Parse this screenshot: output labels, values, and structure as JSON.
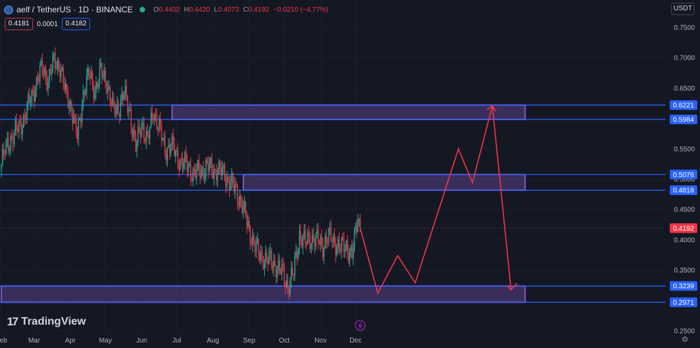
{
  "header": {
    "symbol": "aelf / TetherUS · 1D · BINANCE",
    "ohlc": {
      "o_label": "O",
      "o": "0.4402",
      "h_label": "H",
      "h": "0.4420",
      "l_label": "L",
      "l": "0.4073",
      "c_label": "C",
      "c": "0.4192"
    },
    "change": "−0.0210 (−4.77%)",
    "sell_price": "0.4181",
    "spread": "0.0001",
    "buy_price": "0.4182",
    "currency": "USDT"
  },
  "branding": {
    "name": "TradingView",
    "mark": "17"
  },
  "colors": {
    "background": "#141823",
    "up": "#22ab94",
    "down": "#f23645",
    "level_line": "#2962ff",
    "zone_fill": "rgba(126,87,194,0.35)",
    "projection": "#f23645"
  },
  "chart_data": {
    "type": "candlestick",
    "title": "",
    "xlabel": "",
    "ylabel": "",
    "ylim": [
      0.25,
      0.77
    ],
    "x_ticks": [
      "Feb",
      "Mar",
      "Apr",
      "May",
      "Jun",
      "Jul",
      "Aug",
      "Sep",
      "Oct",
      "Nov",
      "Dec"
    ],
    "y_ticks": [
      "0.7500",
      "0.7000",
      "0.6500",
      "0.6000",
      "0.5500",
      "0.5000",
      "0.4500",
      "0.4000",
      "0.3500",
      "0.3000",
      "0.2500"
    ],
    "last_price": "0.4192",
    "price_series_close": [
      [
        0,
        0.525
      ],
      [
        5,
        0.558
      ],
      [
        10,
        0.572
      ],
      [
        15,
        0.585
      ],
      [
        20,
        0.603
      ],
      [
        25,
        0.632
      ],
      [
        30,
        0.66
      ],
      [
        35,
        0.683
      ],
      [
        40,
        0.664
      ],
      [
        45,
        0.693
      ],
      [
        50,
        0.688
      ],
      [
        55,
        0.64
      ],
      [
        60,
        0.618
      ],
      [
        65,
        0.566
      ],
      [
        70,
        0.642
      ],
      [
        75,
        0.672
      ],
      [
        80,
        0.648
      ],
      [
        85,
        0.676
      ],
      [
        90,
        0.663
      ],
      [
        95,
        0.615
      ],
      [
        100,
        0.618
      ],
      [
        105,
        0.64
      ],
      [
        110,
        0.61
      ],
      [
        115,
        0.55
      ],
      [
        120,
        0.595
      ],
      [
        125,
        0.56
      ],
      [
        130,
        0.615
      ],
      [
        135,
        0.583
      ],
      [
        140,
        0.549
      ],
      [
        145,
        0.556
      ],
      [
        150,
        0.538
      ],
      [
        155,
        0.526
      ],
      [
        160,
        0.522
      ],
      [
        165,
        0.508
      ],
      [
        170,
        0.514
      ],
      [
        175,
        0.52
      ],
      [
        180,
        0.516
      ],
      [
        185,
        0.514
      ],
      [
        190,
        0.508
      ],
      [
        195,
        0.498
      ],
      [
        200,
        0.482
      ],
      [
        205,
        0.465
      ],
      [
        210,
        0.428
      ],
      [
        215,
        0.4
      ],
      [
        220,
        0.376
      ],
      [
        225,
        0.37
      ],
      [
        230,
        0.364
      ],
      [
        235,
        0.358
      ],
      [
        240,
        0.346
      ],
      [
        245,
        0.325
      ],
      [
        250,
        0.345
      ],
      [
        255,
        0.41
      ],
      [
        260,
        0.394
      ],
      [
        265,
        0.405
      ],
      [
        270,
        0.398
      ],
      [
        275,
        0.392
      ],
      [
        280,
        0.405
      ],
      [
        285,
        0.398
      ],
      [
        290,
        0.385
      ],
      [
        295,
        0.392
      ],
      [
        300,
        0.372
      ],
      [
        305,
        0.44
      ],
      [
        307,
        0.4192
      ]
    ],
    "levels": [
      {
        "label": "0.6221",
        "value": 0.6221
      },
      {
        "label": "0.5984",
        "value": 0.5984
      },
      {
        "label": "0.5076",
        "value": 0.5076
      },
      {
        "label": "0.4818",
        "value": 0.4818
      },
      {
        "label": "0.3239",
        "value": 0.3239
      },
      {
        "label": "0.2971",
        "value": 0.2971
      }
    ],
    "zones": [
      {
        "low": 0.5984,
        "high": 0.6221,
        "from_day": 146,
        "to_day": 448
      },
      {
        "low": 0.4818,
        "high": 0.5076,
        "from_day": 207,
        "to_day": 448
      },
      {
        "low": 0.2971,
        "high": 0.3239,
        "from_day": 0,
        "to_day": 448
      }
    ],
    "projection_path": [
      [
        307,
        0.4192
      ],
      [
        322,
        0.312
      ],
      [
        339,
        0.374
      ],
      [
        354,
        0.329
      ],
      [
        391,
        0.55
      ],
      [
        403,
        0.494
      ],
      [
        420,
        0.621
      ],
      [
        436,
        0.318
      ],
      [
        441,
        0.328
      ]
    ]
  }
}
